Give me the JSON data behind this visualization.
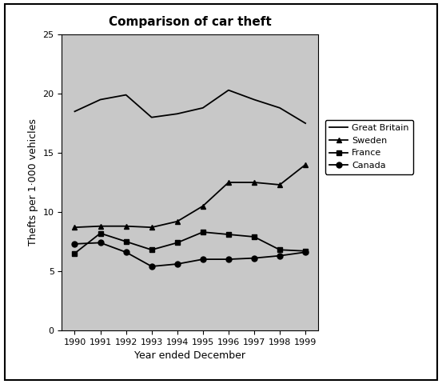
{
  "title": "Comparison of car theft",
  "xlabel": "Year ended December",
  "ylabel": "Thefts per 1·000 vehicles",
  "years": [
    1990,
    1991,
    1992,
    1993,
    1994,
    1995,
    1996,
    1997,
    1998,
    1999
  ],
  "great_britain": [
    18.5,
    19.5,
    19.9,
    18.0,
    18.3,
    18.8,
    20.3,
    19.5,
    18.8,
    17.5
  ],
  "sweden": [
    8.7,
    8.8,
    8.8,
    8.7,
    9.2,
    10.5,
    12.5,
    12.5,
    12.3,
    14.0
  ],
  "france": [
    6.5,
    8.2,
    7.5,
    6.8,
    7.4,
    8.3,
    8.1,
    7.9,
    6.8,
    6.7
  ],
  "canada": [
    7.3,
    7.4,
    6.6,
    5.4,
    5.6,
    6.0,
    6.0,
    6.1,
    6.3,
    6.6
  ],
  "ylim": [
    0,
    25
  ],
  "yticks": [
    0,
    5,
    10,
    15,
    20,
    25
  ],
  "bg_color": "#c8c8c8",
  "fig_color": "#ffffff",
  "line_color": "#000000",
  "legend_labels": [
    "Great Britain",
    "Sweden",
    "France",
    "Canada"
  ],
  "title_fontsize": 11,
  "label_fontsize": 9,
  "tick_fontsize": 8
}
